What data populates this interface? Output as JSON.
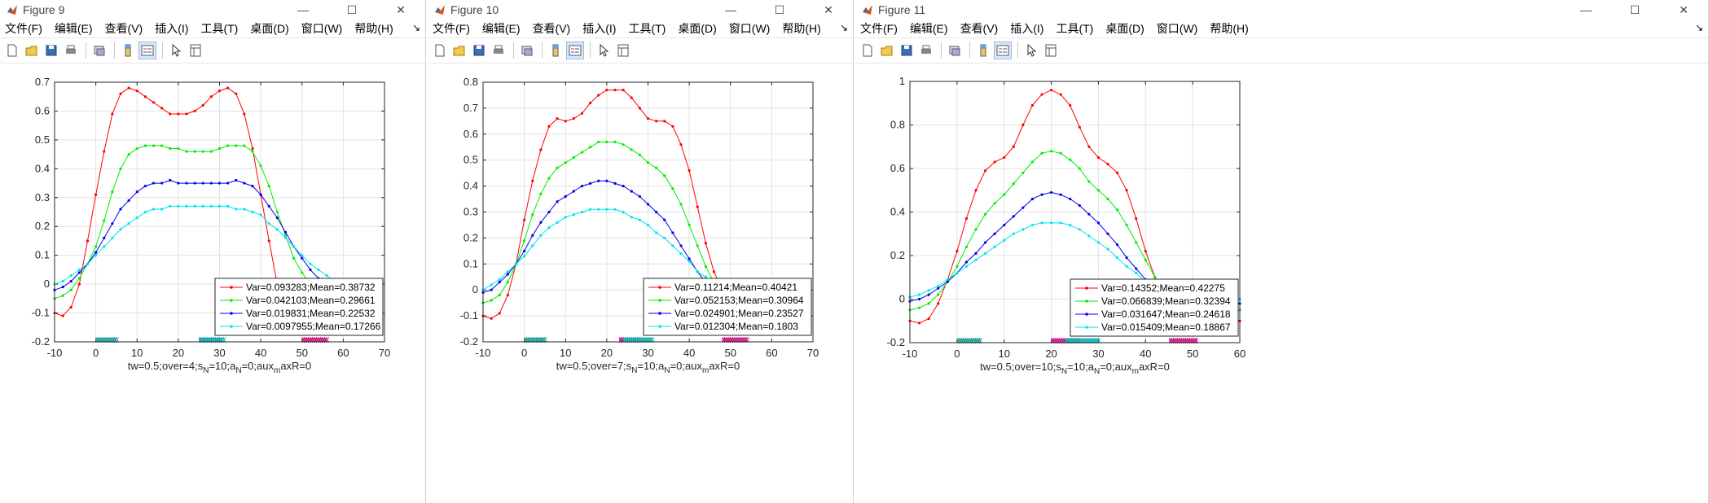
{
  "menu": [
    "文件(F)",
    "编辑(E)",
    "查看(V)",
    "插入(I)",
    "工具(T)",
    "桌面(D)",
    "窗口(W)",
    "帮助(H)"
  ],
  "windows": [
    {
      "title": "Figure 9",
      "chart_data": {
        "type": "line",
        "xlim": [
          -10,
          70
        ],
        "ylim": [
          -0.2,
          0.7
        ],
        "xticks": [
          "-10",
          "0",
          "10",
          "20",
          "30",
          "40",
          "50",
          "60",
          "70"
        ],
        "yticks": [
          "-0.2",
          "-0.1",
          "0",
          "0.1",
          "0.2",
          "0.3",
          "0.4",
          "0.5",
          "0.6",
          "0.7"
        ],
        "xlabel": "tw=0.5;over=4;s_N=10;a_N=0;aux_maxR=0",
        "grid": true,
        "legend_position": "bottom-right",
        "x": [
          -10,
          -8,
          -6,
          -4,
          -2,
          0,
          2,
          4,
          6,
          8,
          10,
          12,
          14,
          16,
          18,
          20,
          22,
          24,
          26,
          28,
          30,
          32,
          34,
          36,
          38,
          40,
          42,
          44,
          46,
          48,
          50,
          52,
          54,
          56,
          58,
          60,
          62,
          64,
          66,
          68
        ],
        "series": [
          {
            "name": "Var=0.093283;Mean=0.38732",
            "color": "#ff0000",
            "values": [
              -0.1,
              -0.11,
              -0.08,
              0.0,
              0.15,
              0.31,
              0.46,
              0.59,
              0.66,
              0.68,
              0.67,
              0.65,
              0.63,
              0.61,
              0.59,
              0.59,
              0.59,
              0.6,
              0.62,
              0.65,
              0.67,
              0.68,
              0.66,
              0.59,
              0.47,
              0.31,
              0.15,
              0.0,
              null,
              null,
              null,
              null,
              null,
              null,
              null,
              null,
              null,
              null,
              null,
              null
            ]
          },
          {
            "name": "Var=0.042103;Mean=0.29661",
            "color": "#00ee00",
            "values": [
              -0.05,
              -0.04,
              -0.02,
              0.02,
              0.07,
              0.13,
              0.22,
              0.32,
              0.4,
              0.45,
              0.47,
              0.48,
              0.48,
              0.48,
              0.47,
              0.47,
              0.46,
              0.46,
              0.46,
              0.46,
              0.47,
              0.48,
              0.48,
              0.48,
              0.46,
              0.41,
              0.34,
              0.25,
              0.17,
              0.09,
              0.04,
              0.0,
              -0.02,
              null,
              null,
              null,
              null,
              null,
              null,
              null
            ]
          },
          {
            "name": "Var=0.019831;Mean=0.22532",
            "color": "#0000ee",
            "values": [
              -0.02,
              -0.01,
              0.01,
              0.04,
              0.07,
              0.11,
              0.16,
              0.21,
              0.26,
              0.29,
              0.32,
              0.34,
              0.35,
              0.35,
              0.36,
              0.35,
              0.35,
              0.35,
              0.35,
              0.35,
              0.35,
              0.35,
              0.36,
              0.35,
              0.34,
              0.31,
              0.27,
              0.23,
              0.18,
              0.13,
              0.09,
              0.05,
              0.02,
              0.01,
              null,
              null,
              null,
              null,
              null,
              null
            ]
          },
          {
            "name": "Var=0.0097955;Mean=0.17266",
            "color": "#00e5ee",
            "values": [
              0.0,
              0.01,
              0.03,
              0.05,
              0.07,
              0.1,
              0.13,
              0.16,
              0.19,
              0.21,
              0.23,
              0.25,
              0.26,
              0.26,
              0.27,
              0.27,
              0.27,
              0.27,
              0.27,
              0.27,
              0.27,
              0.27,
              0.26,
              0.26,
              0.25,
              0.24,
              0.21,
              0.19,
              0.16,
              0.13,
              0.1,
              0.07,
              0.05,
              0.03,
              0.01,
              0.0,
              null,
              null,
              null,
              null
            ]
          }
        ],
        "bottom_bands": [
          {
            "color": "#2aa198",
            "from": 0,
            "to": 5
          },
          {
            "color": "#cc1d8a",
            "from": 25,
            "to": 30
          },
          {
            "color": "#17b3b3",
            "from": 25,
            "to": 31
          },
          {
            "color": "#cc1d8a",
            "from": 50,
            "to": 56
          }
        ]
      }
    },
    {
      "title": "Figure 10",
      "chart_data": {
        "type": "line",
        "xlim": [
          -10,
          70
        ],
        "ylim": [
          -0.2,
          0.8
        ],
        "xticks": [
          "-10",
          "0",
          "10",
          "20",
          "30",
          "40",
          "50",
          "60",
          "70"
        ],
        "yticks": [
          "-0.2",
          "-0.1",
          "0",
          "0.1",
          "0.2",
          "0.3",
          "0.4",
          "0.5",
          "0.6",
          "0.7",
          "0.8"
        ],
        "xlabel": "tw=0.5;over=7;s_N=10;a_N=0;aux_maxR=0",
        "grid": true,
        "legend_position": "bottom-right",
        "x": [
          -10,
          -8,
          -6,
          -4,
          -2,
          0,
          2,
          4,
          6,
          8,
          10,
          12,
          14,
          16,
          18,
          20,
          22,
          24,
          26,
          28,
          30,
          32,
          34,
          36,
          38,
          40,
          42,
          44,
          46,
          48,
          50,
          52,
          54,
          56,
          58,
          60,
          62,
          64,
          66,
          68
        ],
        "series": [
          {
            "name": "Var=0.11214;Mean=0.40421",
            "color": "#ff0000",
            "values": [
              -0.1,
              -0.11,
              -0.09,
              -0.02,
              0.1,
              0.27,
              0.42,
              0.54,
              0.63,
              0.66,
              0.65,
              0.66,
              0.68,
              0.72,
              0.75,
              0.77,
              0.77,
              0.77,
              0.74,
              0.7,
              0.66,
              0.65,
              0.65,
              0.63,
              0.56,
              0.46,
              0.32,
              0.18,
              0.07,
              0.0,
              null,
              null,
              null,
              null,
              null,
              null,
              null,
              null,
              null,
              null
            ]
          },
          {
            "name": "Var=0.052153;Mean=0.30964",
            "color": "#00ee00",
            "values": [
              -0.05,
              -0.04,
              -0.02,
              0.03,
              0.1,
              0.19,
              0.29,
              0.37,
              0.43,
              0.47,
              0.49,
              0.51,
              0.53,
              0.55,
              0.57,
              0.57,
              0.57,
              0.56,
              0.54,
              0.52,
              0.49,
              0.47,
              0.44,
              0.39,
              0.33,
              0.25,
              0.17,
              0.09,
              0.03,
              0.0,
              null,
              null,
              null,
              null,
              null,
              null,
              null,
              null,
              null,
              null
            ]
          },
          {
            "name": "Var=0.024901;Mean=0.23527",
            "color": "#0000ee",
            "values": [
              -0.01,
              0.0,
              0.03,
              0.06,
              0.1,
              0.15,
              0.21,
              0.26,
              0.3,
              0.34,
              0.36,
              0.38,
              0.4,
              0.41,
              0.42,
              0.42,
              0.41,
              0.4,
              0.38,
              0.36,
              0.33,
              0.3,
              0.27,
              0.22,
              0.17,
              0.12,
              0.07,
              0.03,
              0.0,
              null,
              null,
              null,
              null,
              null,
              null,
              null,
              null,
              null,
              null,
              null
            ]
          },
          {
            "name": "Var=0.012304;Mean=0.1803",
            "color": "#00e5ee",
            "values": [
              0.0,
              0.02,
              0.04,
              0.07,
              0.1,
              0.13,
              0.17,
              0.21,
              0.24,
              0.26,
              0.28,
              0.29,
              0.3,
              0.31,
              0.31,
              0.31,
              0.31,
              0.3,
              0.28,
              0.27,
              0.25,
              0.22,
              0.2,
              0.17,
              0.14,
              0.11,
              0.07,
              0.05,
              0.02,
              0.0,
              null,
              null,
              null,
              null,
              null,
              null,
              null,
              null,
              null,
              null
            ]
          }
        ],
        "bottom_bands": [
          {
            "color": "#2aa198",
            "from": 0,
            "to": 5
          },
          {
            "color": "#cc1d8a",
            "from": 23,
            "to": 28
          },
          {
            "color": "#17b3b3",
            "from": 24,
            "to": 31
          },
          {
            "color": "#cc1d8a",
            "from": 48,
            "to": 54
          }
        ]
      }
    },
    {
      "title": "Figure 11",
      "chart_data": {
        "type": "line",
        "xlim": [
          -10,
          60
        ],
        "ylim": [
          -0.2,
          1.0
        ],
        "xticks": [
          "-10",
          "0",
          "10",
          "20",
          "30",
          "40",
          "50",
          "60"
        ],
        "yticks": [
          "-0.2",
          "0",
          "0.2",
          "0.4",
          "0.6",
          "0.8",
          "1"
        ],
        "xlabel": "tw=0.5;over=10;s_N=10;a_N=0;aux_maxR=0",
        "grid": true,
        "legend_position": "bottom-right",
        "x": [
          -10,
          -8,
          -6,
          -4,
          -2,
          0,
          2,
          4,
          6,
          8,
          10,
          12,
          14,
          16,
          18,
          20,
          22,
          24,
          26,
          28,
          30,
          32,
          34,
          36,
          38,
          40,
          42,
          44,
          46,
          48,
          50,
          52,
          54,
          56,
          58,
          60
        ],
        "series": [
          {
            "name": "Var=0.14352;Mean=0.42275",
            "color": "#ff0000",
            "values": [
              -0.1,
              -0.11,
              -0.09,
              -0.02,
              0.09,
              0.22,
              0.37,
              0.5,
              0.59,
              0.63,
              0.65,
              0.7,
              0.8,
              0.89,
              0.94,
              0.96,
              0.94,
              0.89,
              0.79,
              0.7,
              0.65,
              0.62,
              0.58,
              0.5,
              0.37,
              0.22,
              0.1,
              0.02,
              -0.03,
              -0.06,
              -0.08,
              -0.09,
              -0.1,
              -0.1,
              -0.11,
              -0.1
            ]
          },
          {
            "name": "Var=0.066839;Mean=0.32394",
            "color": "#00ee00",
            "values": [
              -0.05,
              -0.04,
              -0.02,
              0.02,
              0.08,
              0.15,
              0.24,
              0.32,
              0.39,
              0.44,
              0.48,
              0.53,
              0.58,
              0.63,
              0.67,
              0.68,
              0.67,
              0.64,
              0.6,
              0.54,
              0.5,
              0.46,
              0.41,
              0.34,
              0.26,
              0.18,
              0.1,
              0.04,
              0.0,
              -0.02,
              -0.03,
              -0.04,
              -0.04,
              -0.05,
              -0.05,
              -0.05
            ]
          },
          {
            "name": "Var=0.031647;Mean=0.24618",
            "color": "#0000ee",
            "values": [
              -0.01,
              0.0,
              0.02,
              0.05,
              0.08,
              0.12,
              0.17,
              0.21,
              0.26,
              0.3,
              0.34,
              0.38,
              0.42,
              0.46,
              0.48,
              0.49,
              0.48,
              0.46,
              0.43,
              0.39,
              0.35,
              0.3,
              0.25,
              0.19,
              0.14,
              0.09,
              0.04,
              0.01,
              -0.01,
              -0.02,
              -0.02,
              -0.02,
              -0.02,
              -0.02,
              -0.02,
              -0.02
            ]
          },
          {
            "name": "Var=0.015409;Mean=0.18867",
            "color": "#00e5ee",
            "values": [
              0.01,
              0.02,
              0.04,
              0.06,
              0.09,
              0.12,
              0.15,
              0.18,
              0.21,
              0.24,
              0.27,
              0.3,
              0.32,
              0.34,
              0.35,
              0.35,
              0.35,
              0.34,
              0.32,
              0.29,
              0.26,
              0.23,
              0.19,
              0.15,
              0.12,
              0.08,
              0.05,
              0.03,
              0.01,
              0.0,
              0.0,
              0.0,
              0.0,
              0.0,
              0.0,
              0.0
            ]
          }
        ],
        "bottom_bands": [
          {
            "color": "#2aa198",
            "from": 0,
            "to": 5
          },
          {
            "color": "#cc1d8a",
            "from": 20,
            "to": 26
          },
          {
            "color": "#17b3b3",
            "from": 23,
            "to": 30
          },
          {
            "color": "#cc1d8a",
            "from": 45,
            "to": 51
          }
        ]
      }
    }
  ]
}
